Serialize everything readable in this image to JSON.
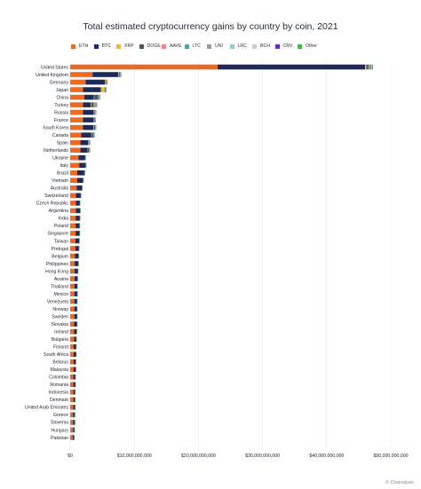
{
  "chart_data": {
    "type": "bar",
    "orientation": "horizontal",
    "stacked": true,
    "title": "Total estimated cryptocurrency gains by country by coin, 2021",
    "legend_position": "top",
    "grid": true,
    "xlim": [
      0,
      50000000000
    ],
    "x_ticks": [
      0,
      10000000000,
      20000000000,
      30000000000,
      40000000000,
      50000000000
    ],
    "x_tick_labels": [
      "$0",
      "$10,000,000,000",
      "$20,000,000,000",
      "$30,000,000,000",
      "$40,000,000,000",
      "$50,000,000,000"
    ],
    "categories": [
      "United States",
      "United Kingdom",
      "Germany",
      "Japan",
      "China",
      "Turkey",
      "Russia",
      "France",
      "South Korea",
      "Canada",
      "Spain",
      "Netherlands",
      "Ukraine",
      "Italy",
      "Brazil",
      "Vietnam",
      "Australia",
      "Switzerland",
      "Czech Republic",
      "Argentina",
      "India",
      "Poland",
      "Singapore",
      "Taiwan",
      "Portugal",
      "Belgium",
      "Philippines",
      "Hong Kong",
      "Austria",
      "Thailand",
      "Mexico",
      "Venezuela",
      "Norway",
      "Sweden",
      "Slovakia",
      "Ireland",
      "Bulgaria",
      "Finland",
      "South Africa",
      "Belarus",
      "Malaysia",
      "Colombia",
      "Romania",
      "Indonesia",
      "Denmark",
      "United Arab Emirates",
      "Greece",
      "Slovenia",
      "Hungary",
      "Pakistan"
    ],
    "series": [
      {
        "name": "ETH",
        "color": "#ec6a24",
        "values": [
          23000000000,
          3500000000,
          2400000000,
          2000000000,
          2200000000,
          2000000000,
          2000000000,
          2000000000,
          2000000000,
          1700000000,
          1600000000,
          1600000000,
          1300000000,
          1400000000,
          1100000000,
          1100000000,
          1000000000,
          900000000,
          900000000,
          900000000,
          850000000,
          850000000,
          850000000,
          800000000,
          800000000,
          750000000,
          700000000,
          700000000,
          700000000,
          650000000,
          650000000,
          650000000,
          650000000,
          650000000,
          600000000,
          600000000,
          600000000,
          550000000,
          550000000,
          550000000,
          550000000,
          500000000,
          500000000,
          500000000,
          500000000,
          500000000,
          450000000,
          450000000,
          450000000,
          400000000
        ]
      },
      {
        "name": "BTC",
        "color": "#1f2a5a",
        "values": [
          23000000000,
          4000000000,
          3000000000,
          2800000000,
          1500000000,
          1200000000,
          1600000000,
          1600000000,
          1600000000,
          1600000000,
          1200000000,
          1100000000,
          1000000000,
          1000000000,
          1100000000,
          900000000,
          800000000,
          700000000,
          600000000,
          650000000,
          650000000,
          600000000,
          600000000,
          600000000,
          550000000,
          550000000,
          550000000,
          500000000,
          450000000,
          450000000,
          450000000,
          400000000,
          400000000,
          400000000,
          450000000,
          400000000,
          350000000,
          350000000,
          350000000,
          300000000,
          300000000,
          300000000,
          300000000,
          250000000,
          250000000,
          250000000,
          250000000,
          250000000,
          200000000,
          200000000
        ]
      },
      {
        "name": "XRP",
        "color": "#f1b82d",
        "values": [
          200000000,
          100000000,
          100000000,
          600000000,
          50000000,
          100000000,
          50000000,
          50000000,
          100000000,
          50000000,
          50000000,
          50000000,
          0,
          0,
          0,
          0,
          0,
          0,
          0,
          0,
          0,
          0,
          0,
          0,
          0,
          0,
          0,
          0,
          0,
          0,
          0,
          0,
          0,
          0,
          0,
          0,
          0,
          0,
          0,
          0,
          0,
          0,
          0,
          0,
          0,
          0,
          0,
          0,
          0,
          0
        ]
      },
      {
        "name": "DOGE",
        "color": "#3d5e5a",
        "values": [
          300000000,
          150000000,
          100000000,
          100000000,
          600000000,
          300000000,
          200000000,
          150000000,
          200000000,
          300000000,
          100000000,
          200000000,
          100000000,
          80000000,
          80000000,
          50000000,
          80000000,
          80000000,
          50000000,
          50000000,
          50000000,
          50000000,
          50000000,
          50000000,
          50000000,
          50000000,
          50000000,
          50000000,
          50000000,
          50000000,
          50000000,
          50000000,
          50000000,
          50000000,
          50000000,
          50000000,
          50000000,
          50000000,
          50000000,
          50000000,
          50000000,
          50000000,
          50000000,
          50000000,
          50000000,
          50000000,
          50000000,
          50000000,
          50000000,
          50000000
        ]
      },
      {
        "name": "AAVE",
        "color": "#e5888a",
        "values": [
          50000000,
          20000000,
          20000000,
          10000000,
          10000000,
          10000000,
          10000000,
          10000000,
          10000000,
          10000000,
          10000000,
          10000000,
          0,
          0,
          0,
          0,
          0,
          0,
          0,
          0,
          0,
          0,
          0,
          0,
          0,
          0,
          0,
          0,
          0,
          0,
          0,
          0,
          0,
          0,
          0,
          0,
          0,
          0,
          0,
          0,
          0,
          0,
          0,
          0,
          0,
          0,
          0,
          0,
          0,
          0
        ]
      },
      {
        "name": "LTC",
        "color": "#5e9c9a",
        "values": [
          200000000,
          50000000,
          50000000,
          50000000,
          100000000,
          150000000,
          50000000,
          50000000,
          50000000,
          50000000,
          50000000,
          50000000,
          20000000,
          20000000,
          20000000,
          20000000,
          20000000,
          20000000,
          0,
          0,
          0,
          0,
          0,
          0,
          0,
          0,
          0,
          0,
          0,
          0,
          0,
          0,
          0,
          0,
          0,
          0,
          0,
          0,
          0,
          0,
          0,
          0,
          0,
          0,
          0,
          0,
          0,
          0,
          0,
          0
        ]
      },
      {
        "name": "UNI",
        "color": "#9a9a9a",
        "values": [
          300000000,
          100000000,
          100000000,
          50000000,
          200000000,
          400000000,
          100000000,
          80000000,
          50000000,
          80000000,
          80000000,
          80000000,
          50000000,
          30000000,
          30000000,
          30000000,
          30000000,
          30000000,
          20000000,
          20000000,
          20000000,
          20000000,
          20000000,
          20000000,
          20000000,
          20000000,
          20000000,
          20000000,
          20000000,
          20000000,
          20000000,
          20000000,
          20000000,
          20000000,
          20000000,
          20000000,
          20000000,
          20000000,
          20000000,
          20000000,
          20000000,
          20000000,
          20000000,
          20000000,
          20000000,
          20000000,
          20000000,
          20000000,
          20000000,
          20000000
        ]
      },
      {
        "name": "LRC",
        "color": "#8fcfd6",
        "values": [
          30000000,
          10000000,
          10000000,
          10000000,
          10000000,
          10000000,
          10000000,
          10000000,
          10000000,
          10000000,
          10000000,
          10000000,
          0,
          0,
          0,
          0,
          0,
          0,
          0,
          0,
          0,
          0,
          0,
          0,
          0,
          0,
          0,
          0,
          0,
          0,
          0,
          0,
          0,
          0,
          0,
          0,
          0,
          0,
          0,
          0,
          0,
          0,
          0,
          0,
          0,
          0,
          0,
          0,
          0,
          0
        ]
      },
      {
        "name": "BCH",
        "color": "#c8ccd6",
        "values": [
          30000000,
          10000000,
          10000000,
          10000000,
          10000000,
          10000000,
          10000000,
          10000000,
          10000000,
          10000000,
          10000000,
          10000000,
          0,
          0,
          0,
          0,
          0,
          0,
          0,
          0,
          0,
          0,
          0,
          0,
          0,
          0,
          0,
          0,
          0,
          0,
          0,
          0,
          0,
          0,
          0,
          0,
          0,
          0,
          0,
          0,
          0,
          0,
          0,
          0,
          0,
          0,
          0,
          0,
          0,
          0
        ]
      },
      {
        "name": "CRV",
        "color": "#5a2fc0",
        "values": [
          20000000,
          10000000,
          10000000,
          10000000,
          10000000,
          10000000,
          10000000,
          10000000,
          10000000,
          10000000,
          10000000,
          10000000,
          0,
          0,
          0,
          0,
          0,
          0,
          0,
          0,
          0,
          0,
          0,
          0,
          0,
          0,
          0,
          0,
          0,
          0,
          0,
          0,
          0,
          0,
          0,
          0,
          0,
          0,
          0,
          0,
          0,
          0,
          0,
          0,
          0,
          0,
          0,
          0,
          0,
          0
        ]
      },
      {
        "name": "Other",
        "color": "#33c43a",
        "values": [
          100000000,
          30000000,
          30000000,
          20000000,
          20000000,
          20000000,
          20000000,
          20000000,
          20000000,
          20000000,
          20000000,
          20000000,
          10000000,
          10000000,
          10000000,
          10000000,
          10000000,
          10000000,
          10000000,
          10000000,
          10000000,
          10000000,
          10000000,
          10000000,
          10000000,
          10000000,
          10000000,
          10000000,
          10000000,
          10000000,
          10000000,
          10000000,
          10000000,
          10000000,
          10000000,
          10000000,
          10000000,
          10000000,
          10000000,
          10000000,
          10000000,
          10000000,
          10000000,
          10000000,
          10000000,
          10000000,
          10000000,
          10000000,
          10000000,
          10000000
        ]
      }
    ]
  },
  "credit": "Chainalysis",
  "credit_icon": "copyright-icon"
}
